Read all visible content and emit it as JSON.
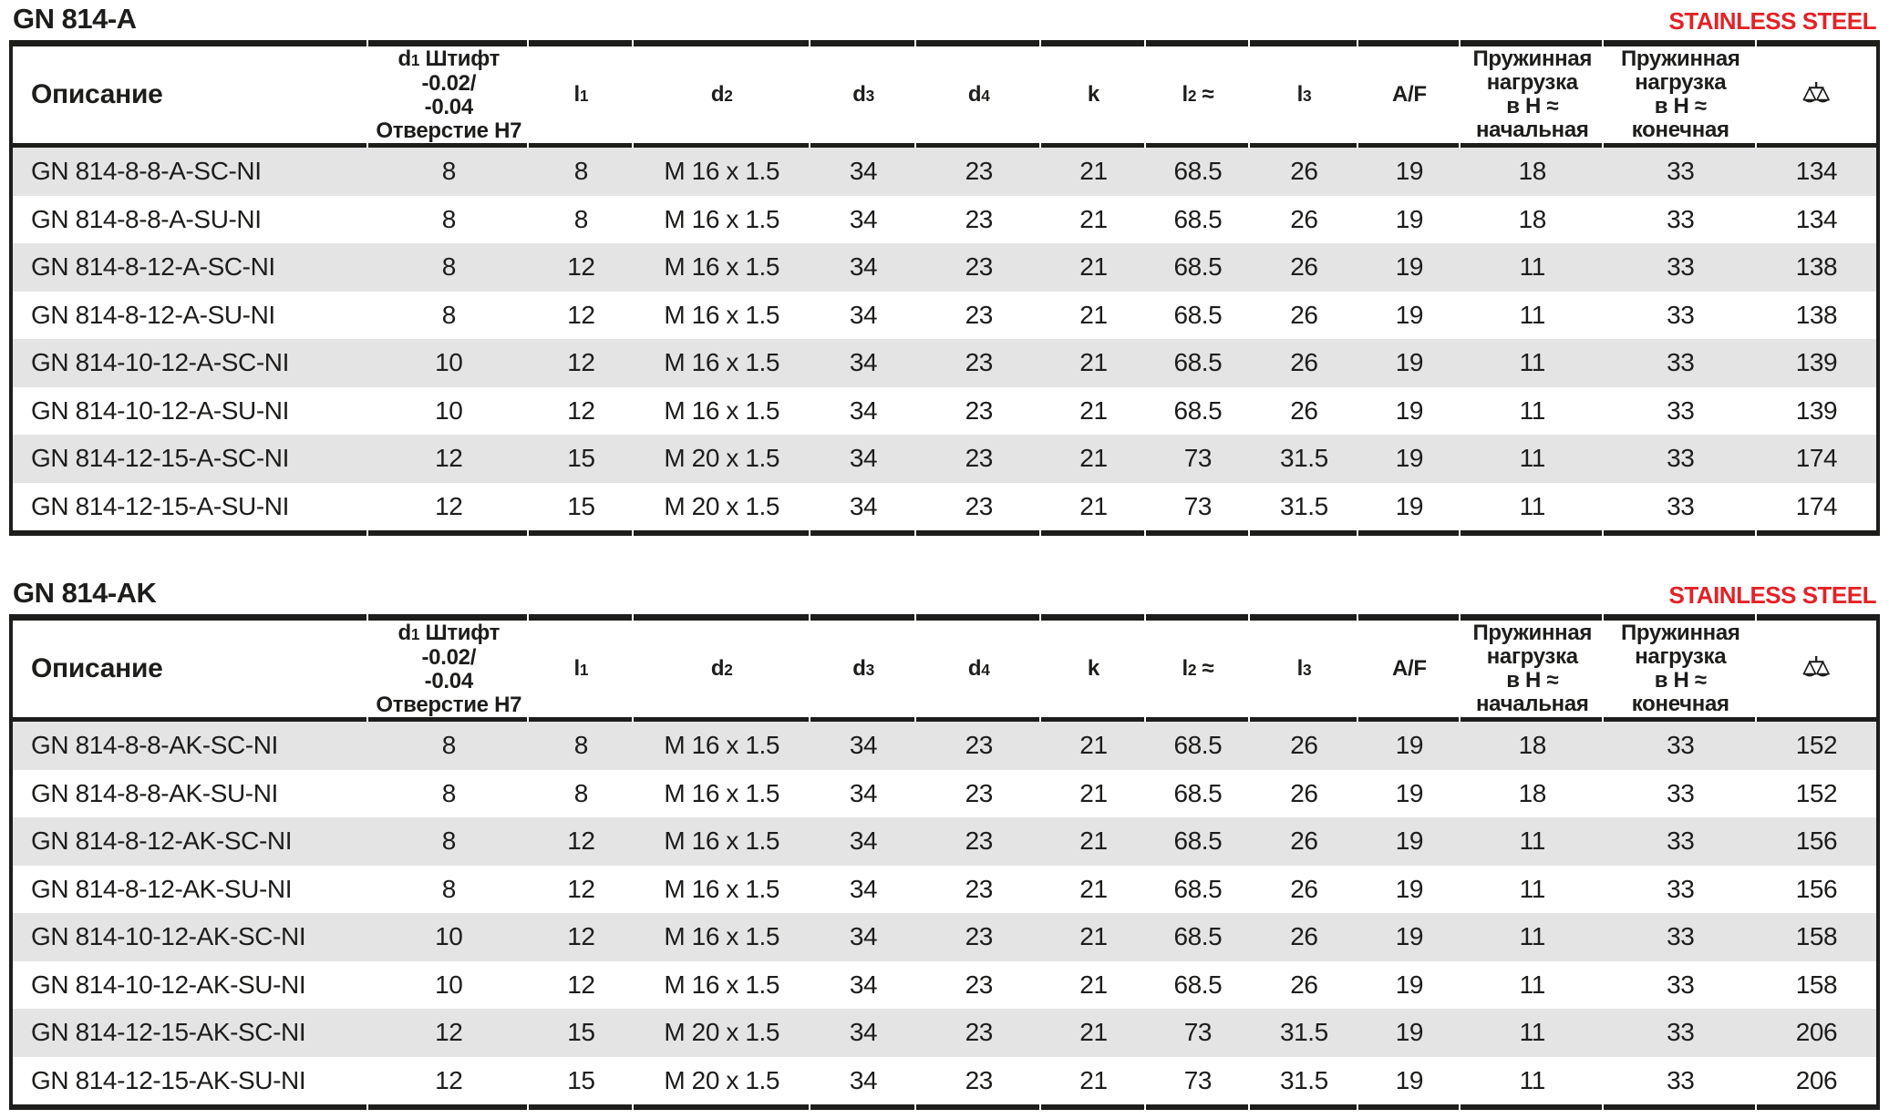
{
  "colors": {
    "accent_red": "#e32227",
    "stripe_gray": "#e4e4e5",
    "ink": "#1d1d1b"
  },
  "columns": [
    {
      "id": "description",
      "width": 19.1,
      "align": "left",
      "prefix": "Описание"
    },
    {
      "id": "d1",
      "width": 8.6,
      "prefix": "d",
      "sub": "1",
      "suffix": " Штифт",
      "lines": [
        "-0.02/",
        "-0.04",
        "Отверстие H7"
      ]
    },
    {
      "id": "l1",
      "width": 5.6,
      "prefix": "l",
      "sub": "1"
    },
    {
      "id": "d2",
      "width": 9.5,
      "prefix": "d",
      "sub": "2"
    },
    {
      "id": "d3",
      "width": 5.7,
      "prefix": "d",
      "sub": "3"
    },
    {
      "id": "d4",
      "width": 6.7,
      "prefix": "d",
      "sub": "4"
    },
    {
      "id": "k",
      "width": 5.6,
      "prefix": "k"
    },
    {
      "id": "l2",
      "width": 5.6,
      "prefix": "l",
      "sub": "2",
      "suffix": " ≈"
    },
    {
      "id": "l3",
      "width": 5.8,
      "prefix": "l",
      "sub": "3"
    },
    {
      "id": "af",
      "width": 5.5,
      "prefix": "A/F"
    },
    {
      "id": "spring-initial",
      "width": 7.7,
      "lines": [
        "Пружинная",
        "нагрузка",
        "в H ≈",
        "начальная"
      ]
    },
    {
      "id": "spring-final",
      "width": 8.2,
      "lines": [
        "Пружинная",
        "нагрузка",
        "в H ≈",
        "конечная"
      ]
    },
    {
      "id": "weight",
      "width": 6.4,
      "icon": "scale-icon"
    }
  ],
  "tables": [
    {
      "title": "GN 814-A",
      "badge": "STAINLESS STEEL",
      "rows": [
        [
          "GN 814-8-8-A-SC-NI",
          "8",
          "8",
          "M 16 x 1.5",
          "34",
          "23",
          "21",
          "68.5",
          "26",
          "19",
          "18",
          "33",
          "134"
        ],
        [
          "GN 814-8-8-A-SU-NI",
          "8",
          "8",
          "M 16 x 1.5",
          "34",
          "23",
          "21",
          "68.5",
          "26",
          "19",
          "18",
          "33",
          "134"
        ],
        [
          "GN 814-8-12-A-SC-NI",
          "8",
          "12",
          "M 16 x 1.5",
          "34",
          "23",
          "21",
          "68.5",
          "26",
          "19",
          "11",
          "33",
          "138"
        ],
        [
          "GN 814-8-12-A-SU-NI",
          "8",
          "12",
          "M 16 x 1.5",
          "34",
          "23",
          "21",
          "68.5",
          "26",
          "19",
          "11",
          "33",
          "138"
        ],
        [
          "GN 814-10-12-A-SC-NI",
          "10",
          "12",
          "M 16 x 1.5",
          "34",
          "23",
          "21",
          "68.5",
          "26",
          "19",
          "11",
          "33",
          "139"
        ],
        [
          "GN 814-10-12-A-SU-NI",
          "10",
          "12",
          "M 16 x 1.5",
          "34",
          "23",
          "21",
          "68.5",
          "26",
          "19",
          "11",
          "33",
          "139"
        ],
        [
          "GN 814-12-15-A-SC-NI",
          "12",
          "15",
          "M 20 x 1.5",
          "34",
          "23",
          "21",
          "73",
          "31.5",
          "19",
          "11",
          "33",
          "174"
        ],
        [
          "GN 814-12-15-A-SU-NI",
          "12",
          "15",
          "M 20 x 1.5",
          "34",
          "23",
          "21",
          "73",
          "31.5",
          "19",
          "11",
          "33",
          "174"
        ]
      ]
    },
    {
      "title": "GN 814-AK",
      "badge": "STAINLESS STEEL",
      "rows": [
        [
          "GN 814-8-8-AK-SC-NI",
          "8",
          "8",
          "M 16 x 1.5",
          "34",
          "23",
          "21",
          "68.5",
          "26",
          "19",
          "18",
          "33",
          "152"
        ],
        [
          "GN 814-8-8-AK-SU-NI",
          "8",
          "8",
          "M 16 x 1.5",
          "34",
          "23",
          "21",
          "68.5",
          "26",
          "19",
          "18",
          "33",
          "152"
        ],
        [
          "GN 814-8-12-AK-SC-NI",
          "8",
          "12",
          "M 16 x 1.5",
          "34",
          "23",
          "21",
          "68.5",
          "26",
          "19",
          "11",
          "33",
          "156"
        ],
        [
          "GN 814-8-12-AK-SU-NI",
          "8",
          "12",
          "M 16 x 1.5",
          "34",
          "23",
          "21",
          "68.5",
          "26",
          "19",
          "11",
          "33",
          "156"
        ],
        [
          "GN 814-10-12-AK-SC-NI",
          "10",
          "12",
          "M 16 x 1.5",
          "34",
          "23",
          "21",
          "68.5",
          "26",
          "19",
          "11",
          "33",
          "158"
        ],
        [
          "GN 814-10-12-AK-SU-NI",
          "10",
          "12",
          "M 16 x 1.5",
          "34",
          "23",
          "21",
          "68.5",
          "26",
          "19",
          "11",
          "33",
          "158"
        ],
        [
          "GN 814-12-15-AK-SC-NI",
          "12",
          "15",
          "M 20 x 1.5",
          "34",
          "23",
          "21",
          "73",
          "31.5",
          "19",
          "11",
          "33",
          "206"
        ],
        [
          "GN 814-12-15-AK-SU-NI",
          "12",
          "15",
          "M 20 x 1.5",
          "34",
          "23",
          "21",
          "73",
          "31.5",
          "19",
          "11",
          "33",
          "206"
        ]
      ]
    }
  ]
}
